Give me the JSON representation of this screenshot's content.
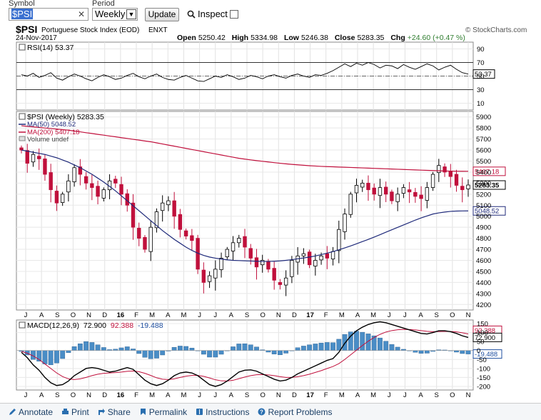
{
  "toolbar": {
    "symbol_label": "Symbol",
    "symbol_value": "$PSI",
    "period_label": "Period",
    "period_value": "Weekly",
    "update_label": "Update",
    "inspect_label": "Inspect",
    "clear_glyph": "✕",
    "select_arrow": "▼"
  },
  "header": {
    "ticker": "$PSI",
    "name": "Portuguese Stock Index (EOD)",
    "exchange": "ENXT",
    "date": "24-Nov-2017",
    "watermark": "© StockCharts.com",
    "open_label": "Open",
    "open": "5250.42",
    "high_label": "High",
    "high": "5334.98",
    "low_label": "Low",
    "low": "5246.38",
    "close_label": "Close",
    "close": "5283.35",
    "chg_label": "Chg",
    "chg": "+24.60 (+0.47 %)",
    "chg_color": "#2f7d2f"
  },
  "chart_data": [
    {
      "type": "line",
      "panel": "RSI",
      "title": "RSI(14) 53.37",
      "last_value": "53.37",
      "ylim": [
        0,
        100
      ],
      "y_ticks": [
        "90",
        "70",
        "50",
        "30",
        "10"
      ],
      "reference_lines": [
        70,
        30
      ],
      "series": [
        {
          "values": [
            52,
            50,
            54,
            48,
            51,
            55,
            47,
            44,
            49,
            53,
            50,
            46,
            43,
            48,
            52,
            49,
            45,
            47,
            51,
            54,
            49,
            46,
            50,
            53,
            48,
            45,
            44,
            48,
            51,
            47,
            43,
            42,
            46,
            50,
            48,
            52,
            49,
            45,
            47,
            51,
            49,
            46,
            50,
            52,
            49,
            47,
            51,
            53,
            50,
            48,
            52,
            51,
            54,
            58,
            63,
            68,
            64,
            69,
            66,
            70,
            67,
            62,
            66,
            65,
            61,
            67,
            63,
            60,
            64,
            68,
            65,
            59,
            63,
            66,
            60,
            55,
            53
          ]
        }
      ]
    },
    {
      "type": "candlestick",
      "panel": "price",
      "title": "$PSI (Weekly) 5283.35",
      "legend": [
        {
          "name": "MA(50) 5048.52",
          "color": "#1f2a7a"
        },
        {
          "name": "MA(200) 5407.18",
          "color": "#c0103c"
        },
        {
          "name": "Volume undef",
          "color": "#666666"
        }
      ],
      "ylim": [
        4150,
        5950
      ],
      "y_ticks": [
        "5900",
        "5800",
        "5700",
        "5600",
        "5500",
        "5400",
        "5300",
        "5200",
        "5100",
        "5000",
        "4900",
        "4800",
        "4700",
        "4600",
        "4500",
        "4400",
        "4300",
        "4200"
      ],
      "x_ticks": [
        "J",
        "A",
        "S",
        "O",
        "N",
        "D",
        "16",
        "F",
        "M",
        "A",
        "M",
        "J",
        "J",
        "A",
        "S",
        "O",
        "N",
        "D",
        "17",
        "F",
        "M",
        "A",
        "M",
        "J",
        "J",
        "A",
        "S",
        "O",
        "N"
      ],
      "up_color": "#000000",
      "down_color": "#c0103c",
      "price_labels": [
        {
          "text": "5407.18",
          "color": "#c0103c"
        },
        {
          "text": "5283.35",
          "color": "#000000"
        },
        {
          "text": "5048.52",
          "color": "#1f2a7a"
        }
      ],
      "close": [
        5600,
        5480,
        5560,
        5520,
        5380,
        5240,
        5120,
        5200,
        5320,
        5440,
        5380,
        5300,
        5260,
        5180,
        5240,
        5320,
        5300,
        5200,
        5100,
        4900,
        4800,
        4700,
        4900,
        5040,
        5120,
        5140,
        5000,
        4880,
        4820,
        4780,
        4520,
        4400,
        4460,
        4520,
        4620,
        4700,
        4760,
        4800,
        4720,
        4620,
        4540,
        4600,
        4520,
        4420,
        4380,
        4440,
        4600,
        4640,
        4660,
        4560,
        4600,
        4640,
        4620,
        4680,
        4880,
        5020,
        5200,
        5280,
        5300,
        5240,
        5200,
        5260,
        5200,
        5140,
        5200,
        5260,
        5220,
        5180,
        5160,
        5260,
        5380,
        5460,
        5400,
        5360,
        5280,
        5240,
        5283
      ],
      "ma50": [
        5600,
        5590,
        5580,
        5570,
        5560,
        5545,
        5530,
        5510,
        5490,
        5465,
        5440,
        5410,
        5380,
        5345,
        5310,
        5270,
        5230,
        5185,
        5140,
        5095,
        5050,
        5005,
        4960,
        4915,
        4870,
        4830,
        4790,
        4755,
        4720,
        4690,
        4665,
        4645,
        4630,
        4620,
        4612,
        4605,
        4600,
        4598,
        4596,
        4594,
        4592,
        4590,
        4590,
        4592,
        4595,
        4600,
        4606,
        4614,
        4622,
        4630,
        4640,
        4652,
        4665,
        4680,
        4696,
        4713,
        4731,
        4750,
        4770,
        4790,
        4811,
        4833,
        4855,
        4877,
        4899,
        4921,
        4943,
        4965,
        4985,
        5003,
        5020,
        5030,
        5038,
        5044,
        5047,
        5048,
        5048.52
      ],
      "ma200": [
        5820,
        5815,
        5810,
        5805,
        5800,
        5795,
        5790,
        5785,
        5780,
        5772,
        5765,
        5757,
        5750,
        5742,
        5735,
        5727,
        5720,
        5712,
        5705,
        5697,
        5690,
        5682,
        5675,
        5665,
        5655,
        5645,
        5635,
        5625,
        5615,
        5605,
        5595,
        5585,
        5575,
        5565,
        5555,
        5545,
        5535,
        5525,
        5518,
        5511,
        5504,
        5498,
        5492,
        5486,
        5480,
        5475,
        5470,
        5466,
        5462,
        5458,
        5455,
        5452,
        5450,
        5448,
        5446,
        5444,
        5442,
        5440,
        5438,
        5436,
        5434,
        5432,
        5430,
        5428,
        5426,
        5424,
        5422,
        5420,
        5418,
        5416,
        5414,
        5412,
        5410,
        5409,
        5408,
        5407.5,
        5407.18
      ]
    },
    {
      "type": "line",
      "panel": "MACD",
      "title": "MACD(12,26,9)",
      "macd_value": "72.900",
      "signal_value": "92.388",
      "histogram_value": "-19.488",
      "ylim": [
        -220,
        170
      ],
      "y_ticks": [
        "150",
        "100",
        "50",
        "0",
        "-50",
        "-100",
        "-150",
        "-200"
      ],
      "value_labels": [
        {
          "text": "92.388",
          "color": "#c0103c"
        },
        {
          "text": "72.900",
          "color": "#000000"
        },
        {
          "text": "-19.488",
          "color": "#1f4fa0"
        }
      ],
      "x_ticks": [
        "J",
        "A",
        "S",
        "O",
        "N",
        "D",
        "16",
        "F",
        "M",
        "A",
        "M",
        "J",
        "J",
        "A",
        "S",
        "O",
        "N",
        "D",
        "17",
        "F",
        "M",
        "A",
        "M",
        "J",
        "J",
        "A",
        "S",
        "O",
        "N"
      ],
      "series": [
        {
          "name": "MACD",
          "color": "#000000",
          "values": [
            -10,
            -40,
            -80,
            -110,
            -150,
            -180,
            -195,
            -190,
            -170,
            -140,
            -120,
            -100,
            -95,
            -100,
            -110,
            -120,
            -115,
            -105,
            -95,
            -105,
            -135,
            -165,
            -185,
            -195,
            -185,
            -165,
            -140,
            -125,
            -120,
            -125,
            -140,
            -165,
            -190,
            -200,
            -190,
            -170,
            -145,
            -120,
            -110,
            -108,
            -115,
            -130,
            -145,
            -160,
            -170,
            -165,
            -150,
            -130,
            -115,
            -100,
            -85,
            -70,
            -55,
            -45,
            -10,
            40,
            80,
            110,
            130,
            145,
            155,
            160,
            155,
            145,
            135,
            125,
            115,
            105,
            95,
            92,
            100,
            110,
            110,
            105,
            95,
            82,
            72.9
          ]
        },
        {
          "name": "Signal",
          "color": "#c0103c",
          "values": [
            -5,
            -15,
            -30,
            -50,
            -75,
            -100,
            -125,
            -145,
            -158,
            -162,
            -158,
            -150,
            -140,
            -132,
            -127,
            -125,
            -123,
            -120,
            -116,
            -114,
            -118,
            -127,
            -139,
            -152,
            -160,
            -162,
            -158,
            -150,
            -143,
            -139,
            -139,
            -144,
            -153,
            -163,
            -169,
            -170,
            -166,
            -157,
            -148,
            -140,
            -135,
            -134,
            -136,
            -140,
            -146,
            -150,
            -150,
            -146,
            -140,
            -132,
            -122,
            -112,
            -100,
            -89,
            -73,
            -50,
            -24,
            2,
            28,
            52,
            73,
            90,
            103,
            111,
            116,
            118,
            117,
            115,
            111,
            107,
            105,
            106,
            107,
            106,
            104,
            99,
            92.388
          ]
        },
        {
          "name": "Histogram",
          "color": "#4a8dc6",
          "values": [
            -5,
            -25,
            -50,
            -60,
            -75,
            -80,
            -70,
            -45,
            -12,
            22,
            38,
            50,
            45,
            32,
            17,
            5,
            8,
            15,
            21,
            9,
            -17,
            -38,
            -46,
            -43,
            -25,
            -3,
            18,
            25,
            23,
            14,
            -1,
            -21,
            -37,
            -37,
            -21,
            0,
            21,
            37,
            38,
            32,
            20,
            4,
            -9,
            -20,
            -24,
            -15,
            0,
            16,
            25,
            32,
            37,
            42,
            45,
            44,
            63,
            90,
            104,
            108,
            102,
            93,
            82,
            70,
            52,
            34,
            19,
            7,
            -2,
            -10,
            -16,
            -15,
            -5,
            4,
            3,
            -1,
            -9,
            -17,
            -19.488
          ]
        }
      ]
    }
  ],
  "footer": {
    "annotate": "Annotate",
    "print": "Print",
    "share": "Share",
    "permalink": "Permalink",
    "instructions": "Instructions",
    "report": "Report Problems"
  }
}
